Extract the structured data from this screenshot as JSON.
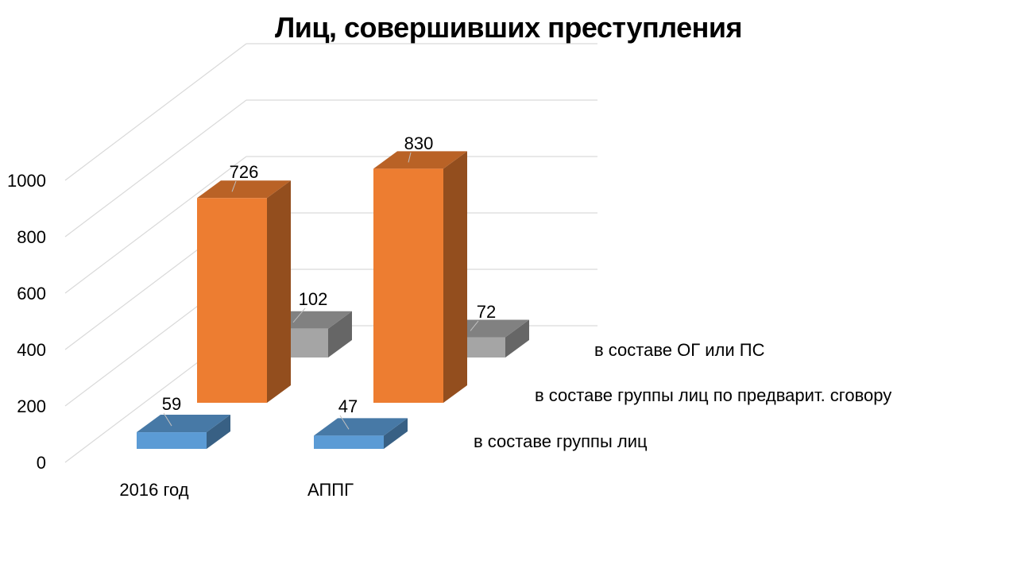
{
  "chart_data": {
    "type": "bar",
    "title": "Лиц, совершивших преступления",
    "categories": [
      "2016 год",
      "АППГ"
    ],
    "ylim": [
      0,
      1000
    ],
    "y_ticks": [
      "0",
      "200",
      "400",
      "600",
      "800",
      "1000"
    ],
    "grid": true,
    "legend_placement": "series labels on depth axis, right",
    "series": [
      {
        "name": "в составе группы лиц",
        "values": [
          59,
          47
        ],
        "color": "#5b9bd5"
      },
      {
        "name": "в составе группы лиц по предварит. сговору",
        "values": [
          726,
          830
        ],
        "color": "#ed7d31"
      },
      {
        "name": "в составе ОГ или ПС",
        "values": [
          102,
          72
        ],
        "color": "#a5a5a5"
      }
    ]
  }
}
